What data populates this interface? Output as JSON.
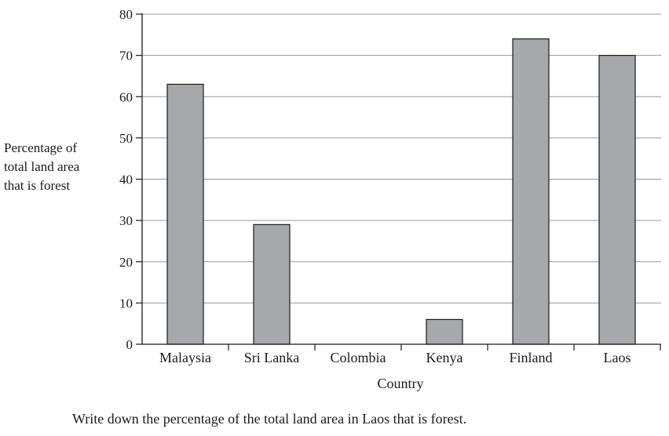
{
  "chart_data": {
    "type": "bar",
    "categories": [
      "Malaysia",
      "Sri Lanka",
      "Colombia",
      "Kenya",
      "Finland",
      "Laos"
    ],
    "values": [
      63,
      29,
      null,
      6,
      74,
      70
    ],
    "ylabel_lines": [
      "Percentage of",
      "total land area",
      "that is forest"
    ],
    "xlabel": "Country",
    "ylim": [
      0,
      80
    ],
    "yticks": [
      0,
      10,
      20,
      30,
      40,
      50,
      60,
      70,
      80
    ],
    "grid": true,
    "bar_color": "#a7a8ab"
  },
  "question": "Write down the percentage of the total land area in Laos that is forest."
}
